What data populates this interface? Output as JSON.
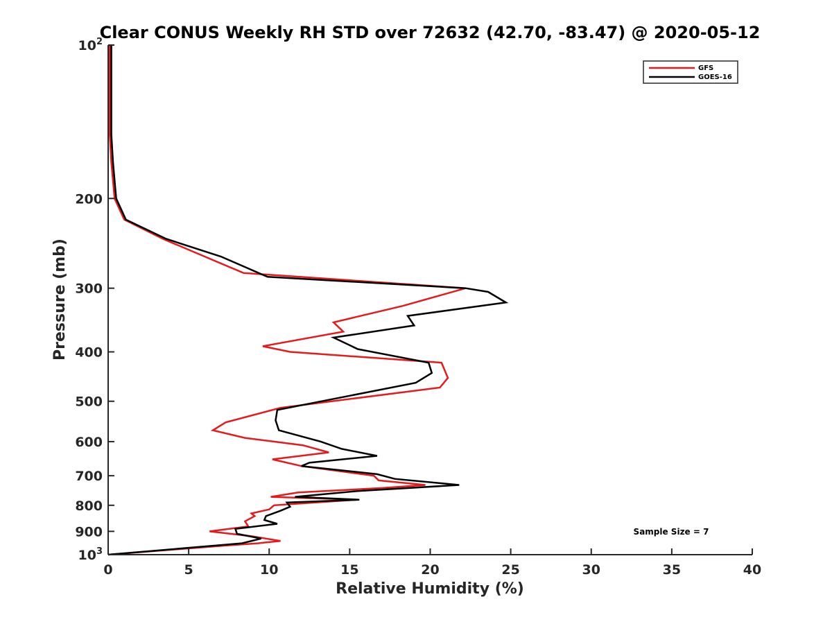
{
  "chart_data": {
    "type": "line",
    "title": "Clear CONUS Weekly RH STD over 72632 (42.70, -83.47) @ 2020-05-12",
    "xlabel": "Relative Humidity (%)",
    "ylabel": "Pressure (mb)",
    "xlim": [
      0,
      40
    ],
    "ylim": [
      100,
      1000
    ],
    "yscale": "log",
    "yreversed": true,
    "grid": false,
    "legend_position": "top-right",
    "x_ticks": [
      "0",
      "5",
      "10",
      "15",
      "20",
      "25",
      "30",
      "35",
      "40"
    ],
    "y_ticks": [
      {
        "value": 100,
        "base": "10",
        "exp": "2"
      },
      {
        "value": 200,
        "label": "200"
      },
      {
        "value": 300,
        "label": "300"
      },
      {
        "value": 400,
        "label": "400"
      },
      {
        "value": 500,
        "label": "500"
      },
      {
        "value": 600,
        "label": "600"
      },
      {
        "value": 700,
        "label": "700"
      },
      {
        "value": 800,
        "label": "800"
      },
      {
        "value": 900,
        "label": "900"
      },
      {
        "value": 1000,
        "base": "10",
        "exp": "3"
      }
    ],
    "annotation": "Sample Size = 7",
    "series": [
      {
        "name": "GFS",
        "color": "#e41a1c",
        "points": [
          [
            0.1,
            100
          ],
          [
            0.1,
            115
          ],
          [
            0.1,
            130
          ],
          [
            0.1,
            150
          ],
          [
            0.2,
            170
          ],
          [
            0.4,
            200
          ],
          [
            1.0,
            220
          ],
          [
            3.4,
            240
          ],
          [
            8.4,
            280
          ],
          [
            22.2,
            300
          ],
          [
            18.3,
            325
          ],
          [
            14.0,
            350
          ],
          [
            14.6,
            365
          ],
          [
            9.6,
            390
          ],
          [
            11.3,
            400
          ],
          [
            20.7,
            420
          ],
          [
            21.1,
            450
          ],
          [
            20.6,
            470
          ],
          [
            10.7,
            515
          ],
          [
            7.3,
            550
          ],
          [
            6.5,
            570
          ],
          [
            8.5,
            590
          ],
          [
            12.1,
            610
          ],
          [
            13.7,
            630
          ],
          [
            10.2,
            650
          ],
          [
            12.0,
            670
          ],
          [
            16.5,
            700
          ],
          [
            16.8,
            715
          ],
          [
            19.7,
            730
          ],
          [
            17.0,
            740
          ],
          [
            11.8,
            755
          ],
          [
            10.1,
            770
          ],
          [
            15.5,
            780
          ],
          [
            10.3,
            800
          ],
          [
            10.0,
            815
          ],
          [
            8.9,
            830
          ],
          [
            9.1,
            840
          ],
          [
            8.5,
            860
          ],
          [
            8.7,
            880
          ],
          [
            6.3,
            900
          ],
          [
            8.9,
            920
          ],
          [
            10.7,
            940
          ],
          [
            9.3,
            950
          ],
          [
            7.2,
            960
          ],
          [
            0.0,
            1000
          ]
        ]
      },
      {
        "name": "GOES-16",
        "color": "#000000",
        "points": [
          [
            0.2,
            100
          ],
          [
            0.2,
            115
          ],
          [
            0.2,
            130
          ],
          [
            0.2,
            150
          ],
          [
            0.3,
            170
          ],
          [
            0.5,
            200
          ],
          [
            1.1,
            220
          ],
          [
            3.6,
            240
          ],
          [
            7.0,
            260
          ],
          [
            9.9,
            285
          ],
          [
            22.2,
            300
          ],
          [
            23.6,
            305
          ],
          [
            24.7,
            320
          ],
          [
            18.6,
            340
          ],
          [
            19.0,
            355
          ],
          [
            14.0,
            375
          ],
          [
            15.5,
            395
          ],
          [
            19.9,
            420
          ],
          [
            20.1,
            440
          ],
          [
            19.1,
            460
          ],
          [
            10.5,
            520
          ],
          [
            10.4,
            545
          ],
          [
            10.6,
            570
          ],
          [
            13.2,
            600
          ],
          [
            14.5,
            620
          ],
          [
            16.7,
            640
          ],
          [
            12.5,
            660
          ],
          [
            12.0,
            670
          ],
          [
            16.7,
            695
          ],
          [
            17.8,
            710
          ],
          [
            21.8,
            730
          ],
          [
            15.5,
            750
          ],
          [
            11.6,
            770
          ],
          [
            15.6,
            780
          ],
          [
            11.1,
            790
          ],
          [
            11.3,
            805
          ],
          [
            10.7,
            820
          ],
          [
            9.8,
            840
          ],
          [
            9.7,
            855
          ],
          [
            10.5,
            870
          ],
          [
            7.9,
            890
          ],
          [
            8.0,
            910
          ],
          [
            9.5,
            930
          ],
          [
            8.3,
            950
          ],
          [
            0.0,
            1000
          ]
        ]
      }
    ]
  }
}
